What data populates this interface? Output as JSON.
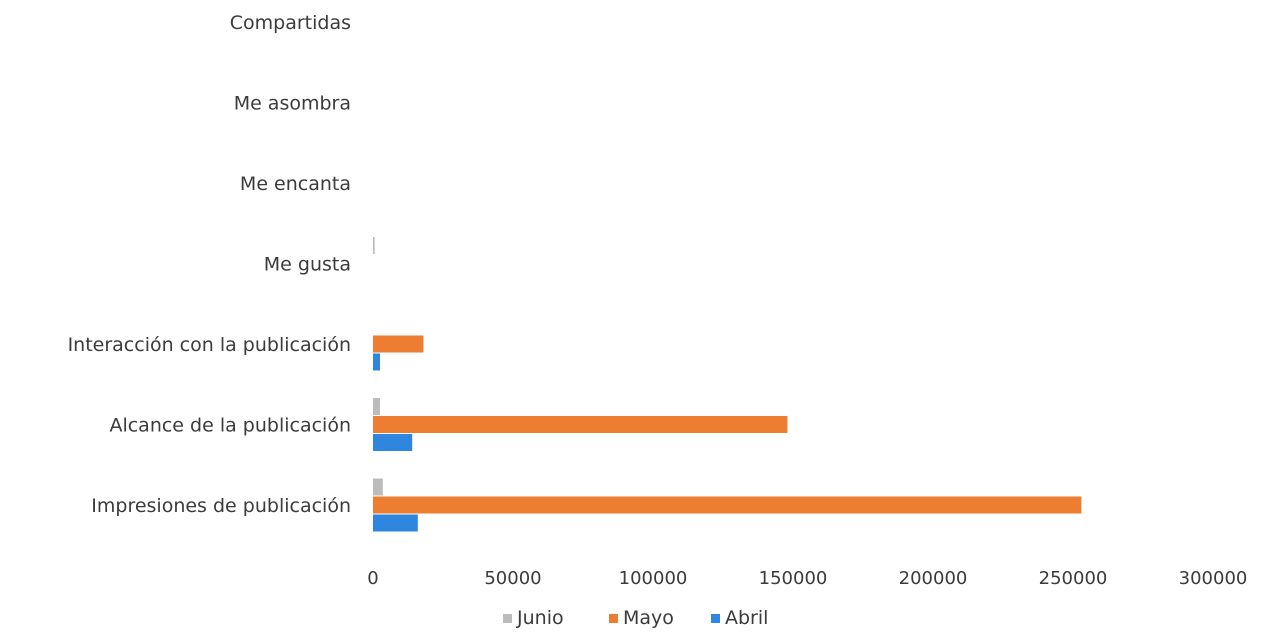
{
  "chart_data": {
    "type": "bar",
    "orientation": "horizontal",
    "categories": [
      "Compartidas",
      "Me asombra",
      "Me encanta",
      "Me gusta",
      "Interacción con la publicación",
      "Alcance de la publicación",
      "Impresiones de publicación"
    ],
    "series": [
      {
        "name": "Junio",
        "color": "#bcbcbc",
        "values": [
          0,
          0,
          0,
          600,
          0,
          2500,
          3500
        ]
      },
      {
        "name": "Mayo",
        "color": "#ed7d31",
        "values": [
          0,
          0,
          0,
          0,
          18000,
          148000,
          253000
        ]
      },
      {
        "name": "Abril",
        "color": "#2e86de",
        "values": [
          0,
          0,
          0,
          0,
          2500,
          14000,
          16000
        ]
      }
    ],
    "xlim": [
      0,
      300000
    ],
    "xticks": [
      "0",
      "50000",
      "100000",
      "150000",
      "200000",
      "250000",
      "300000"
    ],
    "grid": false,
    "legend": {
      "position": "bottom",
      "order": [
        "Junio",
        "Mayo",
        "Abril"
      ]
    }
  }
}
